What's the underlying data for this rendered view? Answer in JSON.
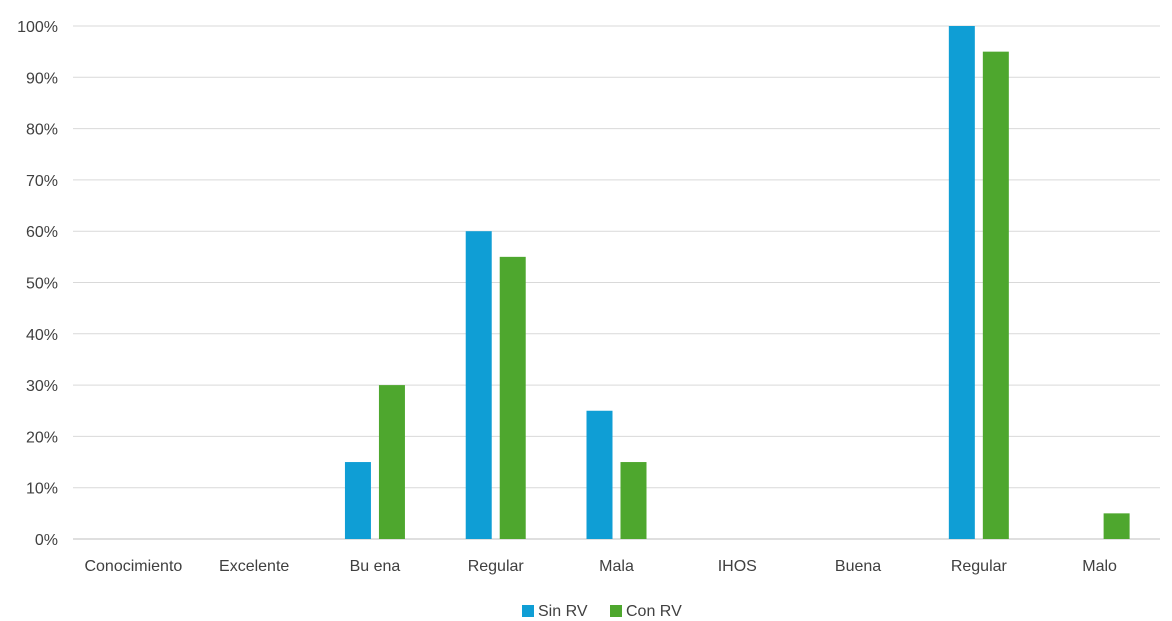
{
  "chart_data": {
    "type": "bar",
    "categories": [
      "Conocimiento",
      "Excelente",
      "Bu ena",
      "Regular",
      "Mala",
      "IHOS",
      "Buena",
      "Regular",
      "Malo"
    ],
    "series": [
      {
        "name": "Sin RV",
        "color": "#0f9ed5",
        "values": [
          0,
          0,
          15,
          60,
          25,
          0,
          0,
          100,
          0
        ]
      },
      {
        "name": "Con RV",
        "color": "#4ea72e",
        "values": [
          0,
          0,
          30,
          55,
          15,
          0,
          0,
          95,
          5
        ]
      }
    ],
    "y_ticks": [
      "0%",
      "10%",
      "20%",
      "30%",
      "40%",
      "50%",
      "60%",
      "70%",
      "80%",
      "90%",
      "100%"
    ],
    "ylim": [
      0,
      100
    ],
    "grid": true,
    "legend_position": "bottom"
  }
}
